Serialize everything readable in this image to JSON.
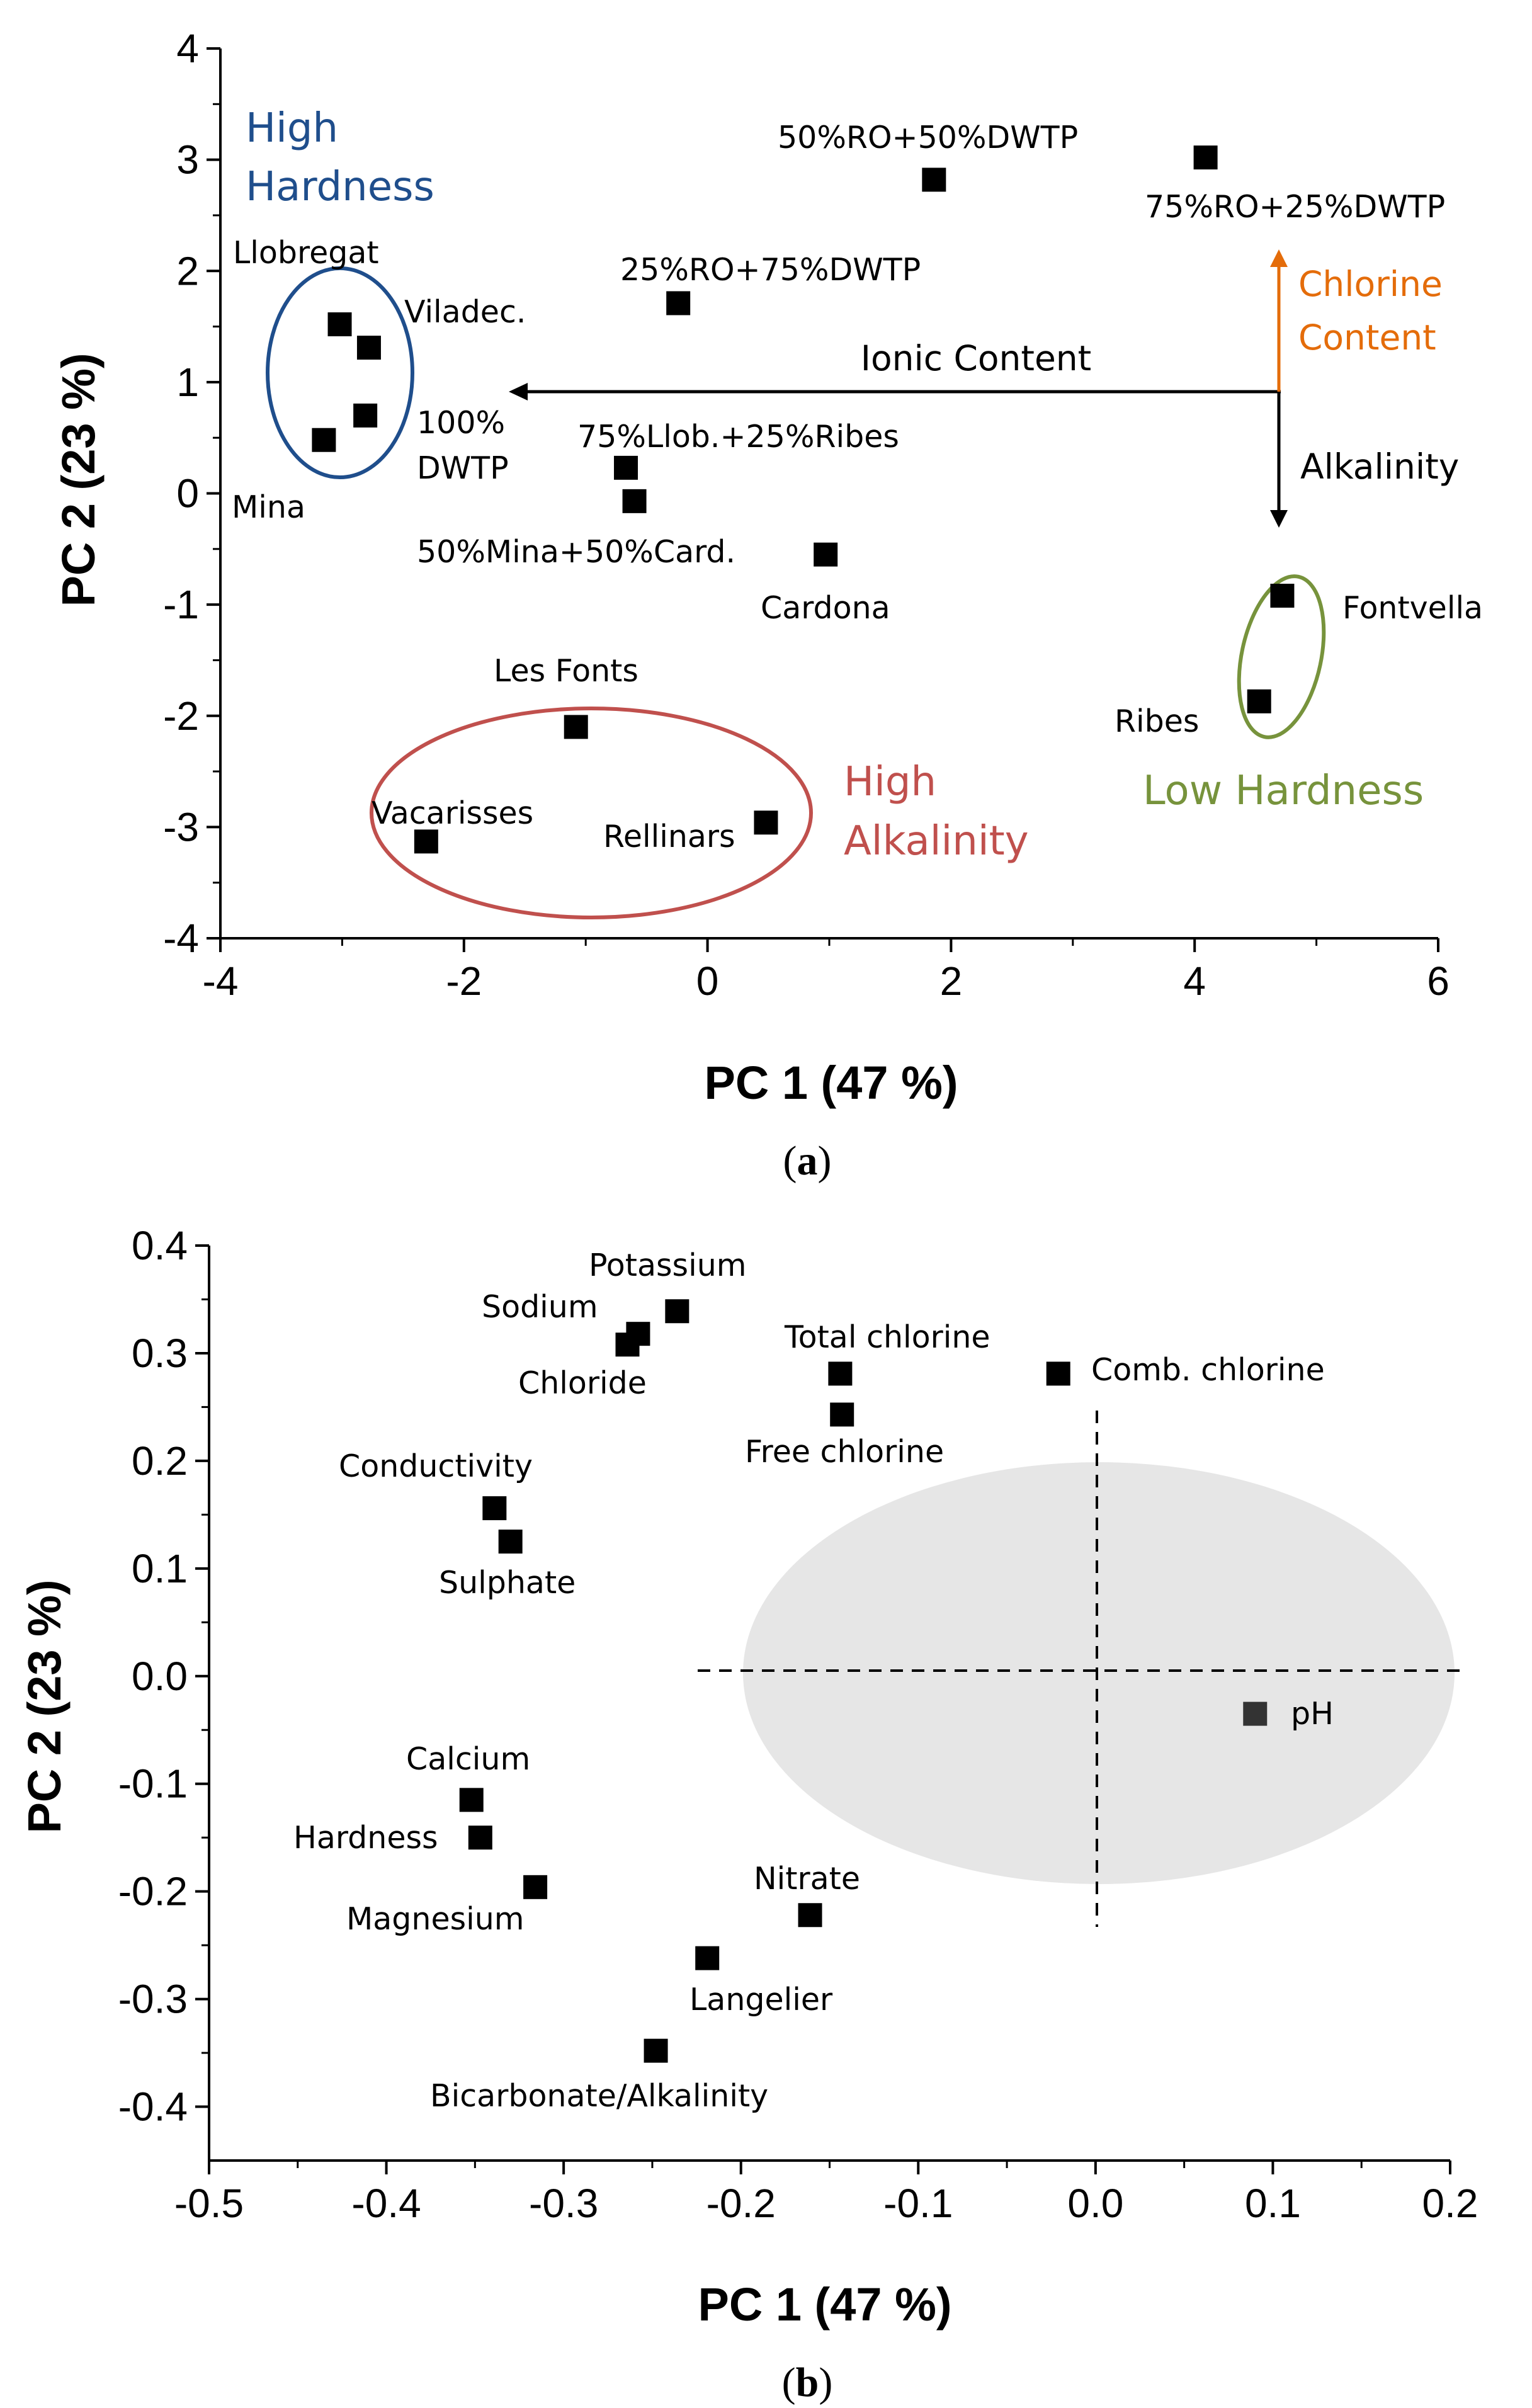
{
  "colors": {
    "marker": "#000000",
    "blue": "#1f4e8c",
    "red": "#c0504d",
    "green": "#77933c",
    "orange": "#e46c0a",
    "shade": "#e6e6e6"
  },
  "chart_data": [
    {
      "type": "scatter",
      "caption_letter": "a",
      "xlabel": "PC 1 (47 %)",
      "ylabel": "PC 2 (23 %)",
      "xlim": [
        -4,
        6
      ],
      "ylim": [
        -4,
        4
      ],
      "xticks": [
        "-4",
        "-2",
        "0",
        "2",
        "4",
        "6"
      ],
      "yticks": [
        "-4",
        "-3",
        "-2",
        "-1",
        "0",
        "1",
        "2",
        "3",
        "4"
      ],
      "points": [
        {
          "label": "Llobregat",
          "x": -3.02,
          "y": 1.52
        },
        {
          "label": "Viladec.",
          "x": -2.78,
          "y": 1.31
        },
        {
          "label": "100% DWTP",
          "x": -2.81,
          "y": 0.7
        },
        {
          "label": "Mina",
          "x": -3.15,
          "y": 0.48
        },
        {
          "label": "50%RO+50%DWTP",
          "x": 1.86,
          "y": 2.82
        },
        {
          "label": "75%RO+25%DWTP",
          "x": 4.09,
          "y": 3.02
        },
        {
          "label": "25%RO+75%DWTP",
          "x": -0.24,
          "y": 1.71
        },
        {
          "label": "75%Llob.+25%Ribes",
          "x": -0.67,
          "y": 0.23
        },
        {
          "label": "50%Mina+50%Card.",
          "x": -0.6,
          "y": -0.07
        },
        {
          "label": "Cardona",
          "x": 0.97,
          "y": -0.55
        },
        {
          "label": "Fontvella",
          "x": 4.72,
          "y": -0.92
        },
        {
          "label": "Ribes",
          "x": 4.53,
          "y": -1.87
        },
        {
          "label": "Les Fonts",
          "x": -1.08,
          "y": -2.1
        },
        {
          "label": "Vacarisses",
          "x": -2.31,
          "y": -3.13
        },
        {
          "label": "Rellinars",
          "x": 0.48,
          "y": -2.96
        }
      ],
      "groups": {
        "high_hardness": [
          "High",
          "Hardness"
        ],
        "high_alkalinity": [
          "High",
          "Alkalinity"
        ],
        "low_hardness": "Low Hardness"
      },
      "arrows": {
        "ionic": "Ionic Content",
        "chlorine": [
          "Chlorine",
          "Content"
        ],
        "alkalinity": "Alkalinity"
      }
    },
    {
      "type": "scatter",
      "caption_letter": "b",
      "xlabel": "PC 1 (47 %)",
      "ylabel": "PC 2 (23 %)",
      "xlim": [
        -0.5,
        0.2
      ],
      "ylim": [
        -0.45,
        0.4
      ],
      "xticks": [
        "-0.5",
        "-0.4",
        "-0.3",
        "-0.2",
        "-0.1",
        "0.0",
        "0.1",
        "0.2"
      ],
      "yticks": [
        "0.4",
        "0.3",
        "0.2",
        "0.1",
        "0.0",
        "-0.1",
        "-0.2",
        "-0.3",
        "-0.4"
      ],
      "points": [
        {
          "label": "Potassium",
          "x": -0.236,
          "y": 0.339
        },
        {
          "label": "Sodium",
          "x": -0.258,
          "y": 0.318
        },
        {
          "label": "Chloride",
          "x": -0.264,
          "y": 0.308
        },
        {
          "label": "Total chlorine",
          "x": -0.144,
          "y": 0.281
        },
        {
          "label": "Comb. chlorine",
          "x": -0.021,
          "y": 0.281
        },
        {
          "label": "Free chlorine",
          "x": -0.143,
          "y": 0.243
        },
        {
          "label": "Conductivity",
          "x": -0.339,
          "y": 0.156
        },
        {
          "label": "Sulphate",
          "x": -0.33,
          "y": 0.125
        },
        {
          "label": "pH",
          "x": 0.09,
          "y": -0.035
        },
        {
          "label": "Calcium",
          "x": -0.352,
          "y": -0.115
        },
        {
          "label": "Hardness",
          "x": -0.347,
          "y": -0.15
        },
        {
          "label": "Magnesium",
          "x": -0.316,
          "y": -0.196
        },
        {
          "label": "Nitrate",
          "x": -0.161,
          "y": -0.222
        },
        {
          "label": "Langelier",
          "x": -0.219,
          "y": -0.262
        },
        {
          "label": "Bicarbonate/Alkalinity",
          "x": -0.248,
          "y": -0.348
        }
      ]
    }
  ]
}
